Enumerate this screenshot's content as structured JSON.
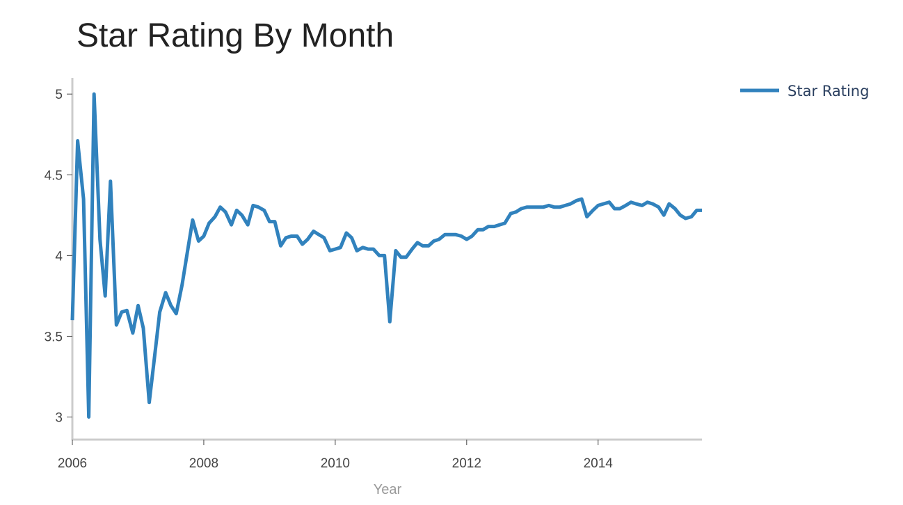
{
  "chart_data": {
    "type": "line",
    "title": "Star Rating By Month",
    "xlabel": "Year",
    "ylabel": "",
    "xlim": [
      2006.0,
      2015.58
    ],
    "ylim": [
      2.86,
      5.1
    ],
    "x_ticks": [
      2006,
      2008,
      2010,
      2012,
      2014
    ],
    "x_tick_labels": [
      "2006",
      "2008",
      "2010",
      "2012",
      "2014"
    ],
    "y_ticks": [
      3,
      3.5,
      4,
      4.5,
      5
    ],
    "y_tick_labels": [
      "3",
      "3.5",
      "4",
      "4.5",
      "5"
    ],
    "grid": false,
    "legend_position": "top-right",
    "series": [
      {
        "name": "Star Rating",
        "color": "#3182bd",
        "x": [
          2006.0,
          2006.08,
          2006.17,
          2006.25,
          2006.33,
          2006.42,
          2006.5,
          2006.58,
          2006.67,
          2006.75,
          2006.83,
          2006.92,
          2007.0,
          2007.08,
          2007.17,
          2007.25,
          2007.33,
          2007.42,
          2007.5,
          2007.58,
          2007.67,
          2007.75,
          2007.83,
          2007.92,
          2008.0,
          2008.08,
          2008.17,
          2008.25,
          2008.33,
          2008.42,
          2008.5,
          2008.58,
          2008.67,
          2008.75,
          2008.83,
          2008.92,
          2009.0,
          2009.08,
          2009.17,
          2009.25,
          2009.33,
          2009.42,
          2009.5,
          2009.58,
          2009.67,
          2009.75,
          2009.83,
          2009.92,
          2010.0,
          2010.08,
          2010.17,
          2010.25,
          2010.33,
          2010.42,
          2010.5,
          2010.58,
          2010.67,
          2010.75,
          2010.83,
          2010.92,
          2011.0,
          2011.08,
          2011.17,
          2011.25,
          2011.33,
          2011.42,
          2011.5,
          2011.58,
          2011.67,
          2011.75,
          2011.83,
          2011.92,
          2012.0,
          2012.08,
          2012.17,
          2012.25,
          2012.33,
          2012.42,
          2012.5,
          2012.58,
          2012.67,
          2012.75,
          2012.83,
          2012.92,
          2013.0,
          2013.08,
          2013.17,
          2013.25,
          2013.33,
          2013.42,
          2013.5,
          2013.58,
          2013.67,
          2013.75,
          2013.83,
          2013.92,
          2014.0,
          2014.08,
          2014.17,
          2014.25,
          2014.33,
          2014.42,
          2014.5,
          2014.58,
          2014.67,
          2014.75,
          2014.83,
          2014.92,
          2015.0,
          2015.08,
          2015.17,
          2015.25,
          2015.33,
          2015.42,
          2015.5,
          2015.58
        ],
        "y": [
          3.6,
          4.71,
          4.35,
          3.0,
          5.0,
          4.1,
          3.75,
          4.46,
          3.57,
          3.65,
          3.66,
          3.52,
          3.69,
          3.55,
          3.09,
          3.37,
          3.65,
          3.77,
          3.69,
          3.64,
          3.82,
          4.02,
          4.22,
          4.09,
          4.12,
          4.2,
          4.24,
          4.3,
          4.27,
          4.19,
          4.28,
          4.25,
          4.19,
          4.31,
          4.3,
          4.28,
          4.21,
          4.21,
          4.06,
          4.11,
          4.12,
          4.12,
          4.07,
          4.1,
          4.15,
          4.13,
          4.11,
          4.03,
          4.04,
          4.05,
          4.14,
          4.11,
          4.03,
          4.05,
          4.04,
          4.04,
          4.0,
          4.0,
          3.59,
          4.03,
          3.99,
          3.99,
          4.04,
          4.08,
          4.06,
          4.06,
          4.09,
          4.1,
          4.13,
          4.13,
          4.13,
          4.12,
          4.1,
          4.12,
          4.16,
          4.16,
          4.18,
          4.18,
          4.19,
          4.2,
          4.26,
          4.27,
          4.29,
          4.3,
          4.3,
          4.3,
          4.3,
          4.31,
          4.3,
          4.3,
          4.31,
          4.32,
          4.34,
          4.35,
          4.24,
          4.28,
          4.31,
          4.32,
          4.33,
          4.29,
          4.29,
          4.31,
          4.33,
          4.32,
          4.31,
          4.33,
          4.32,
          4.3,
          4.25,
          4.32,
          4.29,
          4.25,
          4.23,
          4.24,
          4.28,
          4.28
        ]
      }
    ]
  }
}
